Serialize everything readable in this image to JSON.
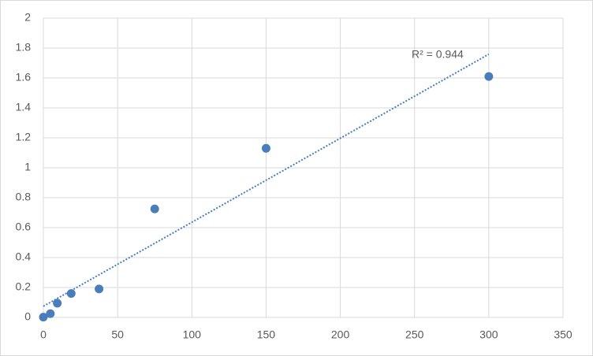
{
  "chart_data": {
    "type": "scatter",
    "x": [
      0,
      4.69,
      9.375,
      18.75,
      37.5,
      75,
      150,
      300
    ],
    "values": [
      0.002,
      0.025,
      0.095,
      0.16,
      0.19,
      0.725,
      1.13,
      1.61
    ],
    "color": "#4a7ebb",
    "xlim": [
      0,
      350
    ],
    "xticks": [
      0,
      50,
      100,
      150,
      200,
      250,
      300,
      350
    ],
    "ylim": [
      0,
      2
    ],
    "yticks": [
      0,
      0.2,
      0.4,
      0.6,
      0.8,
      1,
      1.2,
      1.4,
      1.6,
      1.8,
      2
    ],
    "grid": true,
    "trendline": "linear",
    "annotation": "R² = 0.944"
  }
}
